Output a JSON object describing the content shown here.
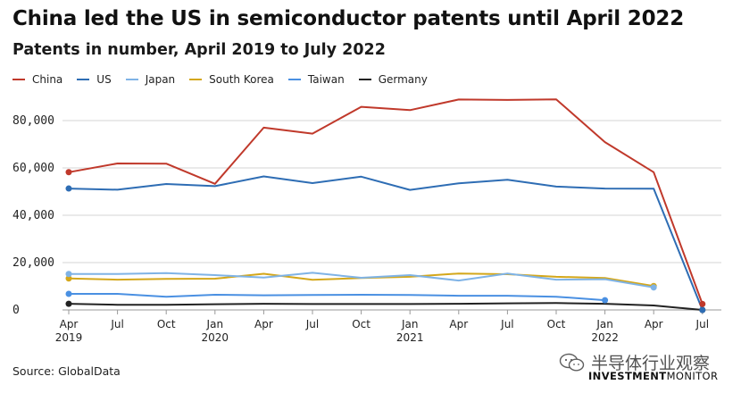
{
  "title": "China led the US in semiconductor patents until April 2022",
  "subtitle": "Patents in number, April 2019 to July 2022",
  "source": "Source: GlobalData",
  "watermark": "半导体行业观察",
  "brand": {
    "bold": "INVESTMENT",
    "light": "MONITOR"
  },
  "chart_data": {
    "type": "line",
    "title": "China led the US in semiconductor patents until April 2022",
    "subtitle": "Patents in number, April 2019 to July 2022",
    "x": [
      "Apr 2019",
      "Jul 2019",
      "Oct 2019",
      "Jan 2020",
      "Apr 2020",
      "Jul 2020",
      "Oct 2020",
      "Jan 2021",
      "Apr 2021",
      "Jul 2021",
      "Oct 2021",
      "Jan 2022",
      "Apr 2022",
      "Jul 2022"
    ],
    "x_tick_labels": [
      {
        "month": "Apr",
        "year": "2019"
      },
      {
        "month": "Jul",
        "year": ""
      },
      {
        "month": "Oct",
        "year": ""
      },
      {
        "month": "Jan",
        "year": "2020"
      },
      {
        "month": "Apr",
        "year": ""
      },
      {
        "month": "Jul",
        "year": ""
      },
      {
        "month": "Oct",
        "year": ""
      },
      {
        "month": "Jan",
        "year": "2021"
      },
      {
        "month": "Apr",
        "year": ""
      },
      {
        "month": "Jul",
        "year": ""
      },
      {
        "month": "Oct",
        "year": ""
      },
      {
        "month": "Jan",
        "year": "2022"
      },
      {
        "month": "Apr",
        "year": ""
      },
      {
        "month": "Jul",
        "year": ""
      }
    ],
    "ylim": [
      0,
      90000
    ],
    "yticks": [
      0,
      20000,
      40000,
      60000,
      80000
    ],
    "ytick_labels": [
      "0",
      "20,000",
      "40,000",
      "60,000",
      "80,000"
    ],
    "grid": "horizontal",
    "legend_position": "top-left",
    "series": [
      {
        "name": "China",
        "color": "#c0392b",
        "values": [
          58200,
          61900,
          61800,
          53300,
          77000,
          74500,
          85800,
          84400,
          88900,
          88700,
          89000,
          70900,
          58200,
          2500
        ]
      },
      {
        "name": "US",
        "color": "#2e6db4",
        "values": [
          51300,
          50800,
          53200,
          52300,
          56400,
          53600,
          56300,
          50700,
          53500,
          55000,
          52100,
          51300,
          51200,
          0
        ]
      },
      {
        "name": "Japan",
        "color": "#7fb3e6",
        "values": [
          15200,
          15200,
          15600,
          14700,
          13700,
          15700,
          13600,
          14700,
          12400,
          15400,
          12800,
          13000,
          9500,
          null
        ]
      },
      {
        "name": "South Korea",
        "color": "#d4a71a",
        "values": [
          13300,
          12800,
          13100,
          13200,
          15300,
          12700,
          13500,
          14000,
          15400,
          15100,
          14000,
          13500,
          10100,
          null
        ]
      },
      {
        "name": "Taiwan",
        "color": "#4a90e2",
        "values": [
          6800,
          6800,
          5600,
          6400,
          6200,
          6300,
          6400,
          6300,
          6000,
          6000,
          5600,
          4100,
          null,
          null
        ]
      },
      {
        "name": "Germany",
        "color": "#222222",
        "values": [
          2600,
          2200,
          2200,
          2400,
          2600,
          2500,
          2500,
          2500,
          2600,
          2800,
          2900,
          2600,
          1900,
          0
        ]
      }
    ]
  }
}
